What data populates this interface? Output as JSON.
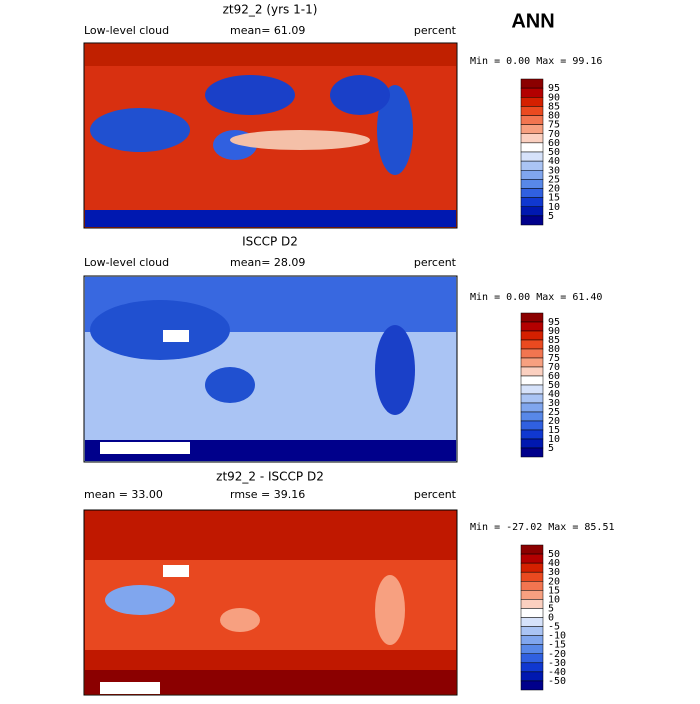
{
  "season": "ANN",
  "panels": [
    {
      "title": "zt92_2 (yrs 1-1)",
      "left": "Low-level cloud",
      "middle": "mean=  61.09",
      "units": "percent",
      "range": "Min =   0.00 Max =  99.16",
      "levels": [
        95,
        90,
        85,
        80,
        75,
        70,
        60,
        50,
        40,
        30,
        25,
        20,
        15,
        10,
        5
      ]
    },
    {
      "title": "ISCCP D2",
      "left": "Low-level cloud",
      "middle": "mean=  28.09",
      "units": "percent",
      "range": "Min =   0.00 Max =  61.40",
      "levels": [
        95,
        90,
        85,
        80,
        75,
        70,
        60,
        50,
        40,
        30,
        25,
        20,
        15,
        10,
        5
      ]
    },
    {
      "title": "zt92_2 - ISCCP D2",
      "left": "mean =  33.00",
      "middle": "rmse =  39.16",
      "units": "percent",
      "range": "Min = -27.02 Max =  85.51",
      "levels": [
        50,
        40,
        30,
        20,
        15,
        10,
        5,
        0,
        -5,
        -10,
        -15,
        -20,
        -30,
        -40,
        -50
      ]
    }
  ],
  "colorbar_colors": [
    "#8b0000",
    "#b30000",
    "#d42000",
    "#ea4a20",
    "#f27550",
    "#f7a080",
    "#fbd0c0",
    "#ffffff",
    "#d6e2fa",
    "#aac4f4",
    "#80a6ee",
    "#5888e8",
    "#3060e0",
    "#1038d0",
    "#0018b0",
    "#00008b"
  ]
}
